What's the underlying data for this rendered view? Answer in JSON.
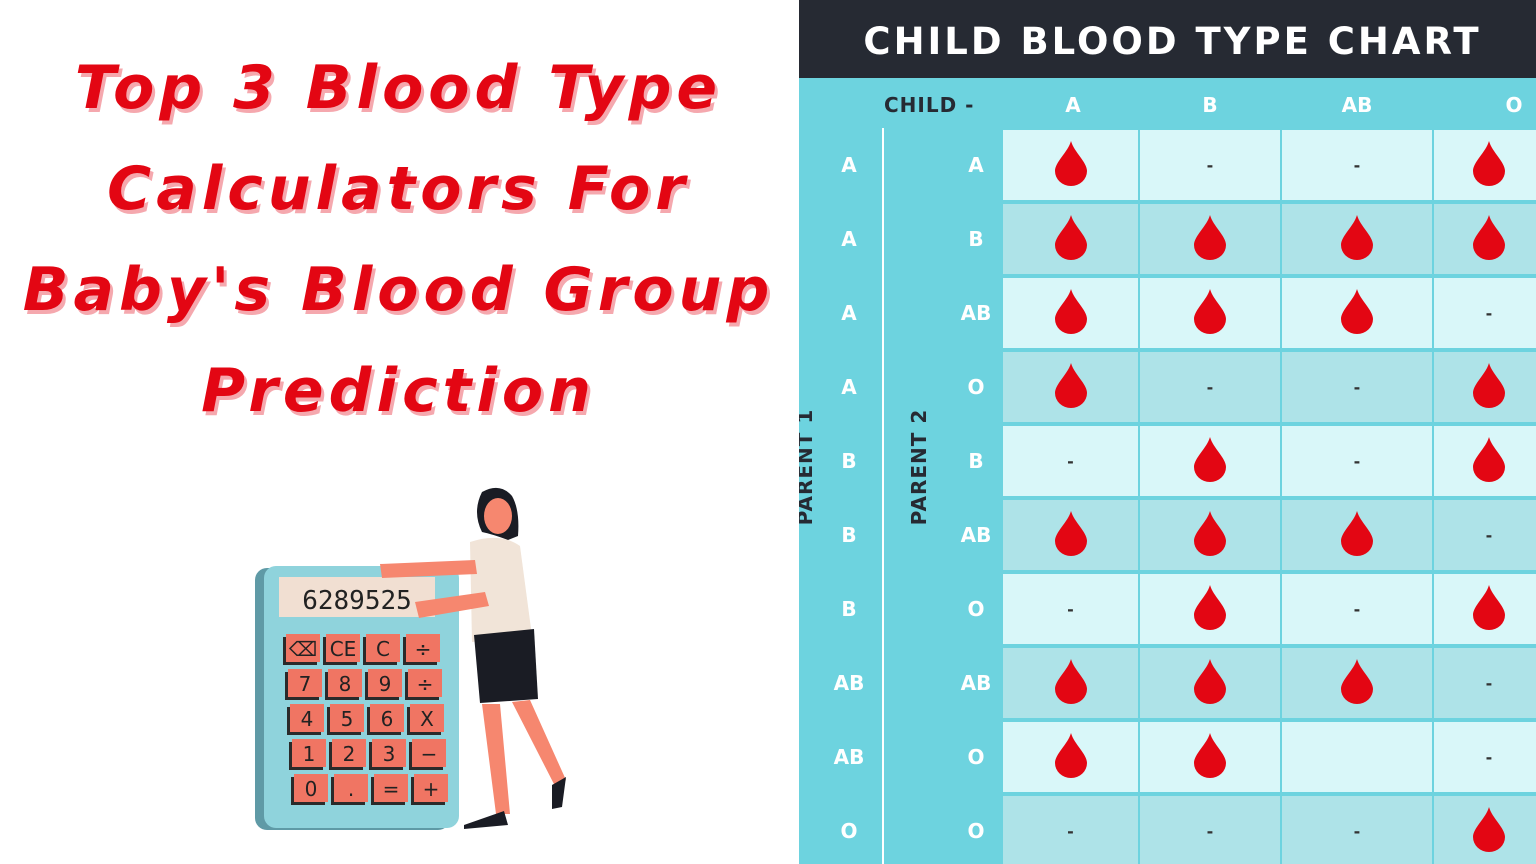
{
  "title_lines": [
    "Top 3 Blood Type",
    "Calculators For",
    "Baby's Blood Group",
    "Prediction"
  ],
  "calculator": {
    "display": "6289525",
    "keys": [
      "⌫",
      "CE",
      "C",
      "÷",
      "7",
      "8",
      "9",
      "÷",
      "4",
      "5",
      "6",
      "X",
      "1",
      "2",
      "3",
      "−",
      "0",
      ".",
      "=",
      "+"
    ]
  },
  "chart": {
    "title": "CHILD BLOOD TYPE CHART",
    "child_label": "CHILD -",
    "parent1_label": "PARENT 1",
    "parent2_label": "PARENT 2",
    "columns": [
      "A",
      "B",
      "AB",
      "O"
    ],
    "rows": [
      {
        "p1": "A",
        "p2": "A",
        "cells": [
          "drop",
          "-",
          "-",
          "drop"
        ]
      },
      {
        "p1": "A",
        "p2": "B",
        "cells": [
          "drop",
          "drop",
          "drop",
          "drop"
        ]
      },
      {
        "p1": "A",
        "p2": "AB",
        "cells": [
          "drop",
          "drop",
          "drop",
          "-"
        ]
      },
      {
        "p1": "A",
        "p2": "O",
        "cells": [
          "drop",
          "-",
          "-",
          "drop"
        ]
      },
      {
        "p1": "B",
        "p2": "B",
        "cells": [
          "-",
          "drop",
          "-",
          "drop"
        ]
      },
      {
        "p1": "B",
        "p2": "AB",
        "cells": [
          "drop",
          "drop",
          "drop",
          "-"
        ]
      },
      {
        "p1": "B",
        "p2": "O",
        "cells": [
          "-",
          "drop",
          "-",
          "drop"
        ]
      },
      {
        "p1": "AB",
        "p2": "AB",
        "cells": [
          "drop",
          "drop",
          "drop",
          "-"
        ]
      },
      {
        "p1": "AB",
        "p2": "O",
        "cells": [
          "drop",
          "drop",
          "",
          "-"
        ]
      },
      {
        "p1": "O",
        "p2": "O",
        "cells": [
          "-",
          "-",
          "-",
          "drop"
        ]
      }
    ],
    "colors": {
      "header": "#262a33",
      "accent": "#6dd3df",
      "row_light": "#d9f7f9",
      "row_dark": "#aee3e8",
      "drop": "#e30613"
    }
  }
}
